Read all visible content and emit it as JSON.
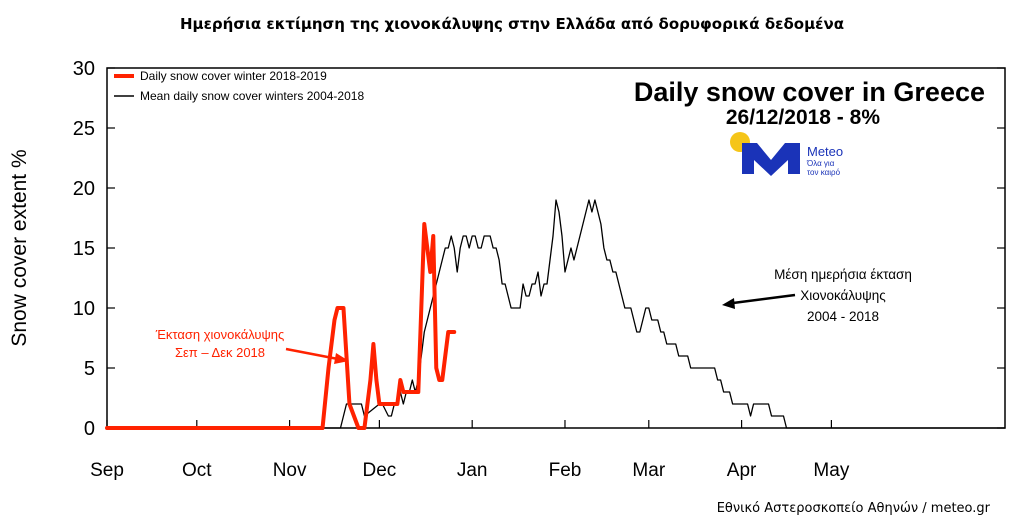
{
  "header": {
    "title": "Ημερήσια εκτίμηση της χιονοκάλυψης στην Ελλάδα από δορυφορικά δεδομένα"
  },
  "panel": {
    "title": "Daily snow cover in Greece",
    "subtitle": "26/12/2018 - 8%"
  },
  "logo": {
    "name": "Meteo",
    "tagline_line1": "Όλα για",
    "tagline_line2": "τον καιρό",
    "sun_color": "#f5c518",
    "brand_color": "#1a33b8"
  },
  "annotations": {
    "red_line1": "Έκταση χιονοκάλυψης",
    "red_line2": "Σεπ – Δεκ 2018",
    "black_line1": "Μέση ημερήσια έκταση",
    "black_line2": "Χιονοκάλυψης",
    "black_line3": "2004 - 2018"
  },
  "footer": {
    "credit": "Εθνικό Αστεροσκοπείο Αθηνών / meteo.gr"
  },
  "chart_data": {
    "type": "line",
    "title": "Daily snow cover in Greece",
    "ylabel": "Snow cover extent %",
    "xlabel": "",
    "ylim": [
      0,
      30
    ],
    "yticks": [
      0,
      5,
      10,
      15,
      20,
      25,
      30
    ],
    "x_unit": "days since 1 Sep",
    "xlim": [
      0,
      300
    ],
    "xtick_labels": [
      "Sep",
      "Oct",
      "Nov",
      "Dec",
      "Jan",
      "Feb",
      "Mar",
      "Apr",
      "May"
    ],
    "xtick_positions": [
      0,
      30,
      61,
      91,
      122,
      153,
      181,
      212,
      242
    ],
    "grid": false,
    "legend_position": "top-left",
    "series": [
      {
        "name": "Daily snow cover winter 2018-2019",
        "color": "#ff2200",
        "width": 4,
        "x": [
          0,
          72,
          74,
          76,
          77,
          79,
          80,
          81,
          84,
          85,
          86,
          88,
          89,
          90,
          91,
          92,
          94,
          96,
          97,
          98,
          99,
          101,
          103,
          104,
          105,
          106,
          107,
          108,
          109,
          110,
          111,
          112,
          113,
          114,
          115,
          116
        ],
        "y": [
          0,
          0,
          5,
          9,
          10,
          10,
          6,
          2,
          0,
          0,
          0,
          4,
          7,
          4,
          2,
          2,
          2,
          2,
          2,
          4,
          3,
          3,
          3,
          3,
          10,
          17,
          15,
          13,
          16,
          5,
          4,
          4,
          6,
          8,
          8,
          8
        ]
      },
      {
        "name": "Mean daily snow cover winters 2004-2018",
        "color": "#000000",
        "width": 1.3,
        "x": [
          0,
          78,
          79,
          80,
          81,
          85,
          86,
          91,
          92,
          94,
          95,
          96,
          97,
          98,
          99,
          100,
          101,
          102,
          103,
          104,
          105,
          106,
          107,
          108,
          109,
          110,
          111,
          112,
          113,
          114,
          115,
          116,
          117,
          118,
          119,
          120,
          121,
          122,
          123,
          124,
          125,
          126,
          127,
          128,
          129,
          130,
          131,
          132,
          133,
          134,
          135,
          136,
          137,
          138,
          139,
          140,
          141,
          142,
          143,
          144,
          145,
          146,
          147,
          148,
          149,
          150,
          151,
          152,
          153,
          154,
          155,
          156,
          157,
          158,
          159,
          160,
          161,
          162,
          163,
          164,
          165,
          166,
          167,
          168,
          169,
          170,
          171,
          172,
          173,
          174,
          175,
          176,
          177,
          178,
          179,
          180,
          181,
          182,
          183,
          184,
          185,
          186,
          187,
          188,
          189,
          190,
          191,
          192,
          193,
          194,
          195,
          196,
          197,
          198,
          199,
          200,
          201,
          202,
          203,
          204,
          205,
          206,
          207,
          208,
          209,
          210,
          211,
          212,
          213,
          214,
          215,
          216,
          217,
          218,
          219,
          220,
          221,
          222,
          223,
          224,
          225,
          226,
          227,
          228,
          229,
          230,
          300
        ],
        "y": [
          0,
          0,
          1,
          2,
          2,
          2,
          1,
          2,
          2,
          1,
          1,
          2,
          2,
          3,
          2,
          3,
          3,
          4,
          3,
          4,
          6,
          8,
          9,
          10,
          11,
          12,
          13,
          14,
          15,
          15,
          16,
          15,
          13,
          15,
          16,
          16,
          15,
          16,
          16,
          15,
          15,
          16,
          16,
          16,
          15,
          15,
          14,
          12,
          12,
          11,
          10,
          10,
          10,
          10,
          12,
          11,
          11,
          12,
          12,
          13,
          11,
          12,
          12,
          14,
          16,
          19,
          18,
          16,
          13,
          14,
          15,
          14,
          15,
          16,
          17,
          18,
          19,
          18,
          19,
          18,
          17,
          15,
          14,
          14,
          13,
          13,
          12,
          11,
          10,
          10,
          10,
          9,
          8,
          8,
          9,
          10,
          10,
          9,
          9,
          9,
          8,
          8,
          7,
          7,
          7,
          7,
          6,
          6,
          6,
          6,
          5,
          5,
          5,
          5,
          5,
          5,
          5,
          5,
          5,
          4,
          4,
          3,
          3,
          3,
          2,
          2,
          2,
          2,
          2,
          2,
          1,
          2,
          2,
          2,
          2,
          2,
          2,
          1,
          1,
          1,
          1,
          1,
          0,
          0,
          0,
          0,
          0
        ]
      }
    ]
  }
}
